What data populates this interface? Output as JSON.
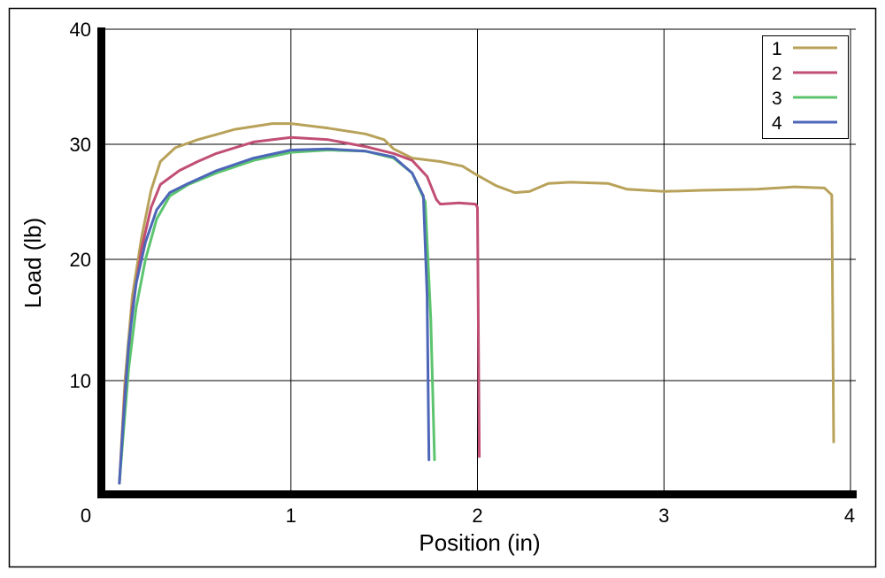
{
  "chart_data": {
    "type": "line",
    "xlabel": "Position (in)",
    "ylabel": "Load (lb)",
    "xlim": [
      0,
      4
    ],
    "ylim": [
      0,
      40
    ],
    "x_ticks": [
      "0",
      "1",
      "2",
      "3",
      "4"
    ],
    "y_ticks": [
      "10",
      "20",
      "30",
      "40"
    ],
    "grid": true,
    "legend_position": "top-right",
    "series": [
      {
        "name": "1",
        "color": "#b8a25a",
        "points": [
          [
            0.08,
            0.8
          ],
          [
            0.11,
            10
          ],
          [
            0.15,
            17
          ],
          [
            0.2,
            22
          ],
          [
            0.25,
            26
          ],
          [
            0.3,
            28.5
          ],
          [
            0.38,
            29.7
          ],
          [
            0.5,
            30.4
          ],
          [
            0.7,
            31.3
          ],
          [
            0.9,
            31.8
          ],
          [
            1.0,
            31.8
          ],
          [
            1.2,
            31.4
          ],
          [
            1.4,
            30.9
          ],
          [
            1.5,
            30.4
          ],
          [
            1.55,
            29.6
          ],
          [
            1.65,
            28.8
          ],
          [
            1.8,
            28.5
          ],
          [
            1.92,
            28.1
          ],
          [
            2.0,
            27.3
          ],
          [
            2.1,
            26.4
          ],
          [
            2.2,
            25.8
          ],
          [
            2.28,
            25.9
          ],
          [
            2.38,
            26.6
          ],
          [
            2.5,
            26.7
          ],
          [
            2.7,
            26.6
          ],
          [
            2.8,
            26.1
          ],
          [
            3.0,
            25.9
          ],
          [
            3.2,
            26.0
          ],
          [
            3.5,
            26.1
          ],
          [
            3.7,
            26.3
          ],
          [
            3.86,
            26.2
          ],
          [
            3.9,
            25.6
          ],
          [
            3.91,
            4.5
          ]
        ]
      },
      {
        "name": "2",
        "color": "#c14f73",
        "points": [
          [
            0.08,
            0.8
          ],
          [
            0.11,
            9
          ],
          [
            0.15,
            16
          ],
          [
            0.2,
            21
          ],
          [
            0.25,
            24.5
          ],
          [
            0.3,
            26.5
          ],
          [
            0.4,
            27.7
          ],
          [
            0.5,
            28.5
          ],
          [
            0.6,
            29.2
          ],
          [
            0.8,
            30.2
          ],
          [
            1.0,
            30.6
          ],
          [
            1.2,
            30.4
          ],
          [
            1.4,
            29.8
          ],
          [
            1.55,
            29.2
          ],
          [
            1.65,
            28.6
          ],
          [
            1.73,
            27.2
          ],
          [
            1.78,
            25.2
          ],
          [
            1.8,
            24.8
          ],
          [
            1.9,
            24.9
          ],
          [
            1.99,
            24.8
          ],
          [
            2.0,
            24.5
          ],
          [
            2.01,
            3.2
          ]
        ]
      },
      {
        "name": "3",
        "color": "#5cc46e",
        "points": [
          [
            0.08,
            0.8
          ],
          [
            0.1,
            5
          ],
          [
            0.13,
            11
          ],
          [
            0.17,
            16
          ],
          [
            0.22,
            20
          ],
          [
            0.28,
            23.5
          ],
          [
            0.35,
            25.5
          ],
          [
            0.45,
            26.5
          ],
          [
            0.6,
            27.5
          ],
          [
            0.8,
            28.6
          ],
          [
            1.0,
            29.3
          ],
          [
            1.2,
            29.5
          ],
          [
            1.4,
            29.4
          ],
          [
            1.55,
            28.8
          ],
          [
            1.65,
            27.5
          ],
          [
            1.72,
            25
          ],
          [
            1.75,
            15
          ],
          [
            1.77,
            2.9
          ]
        ]
      },
      {
        "name": "4",
        "color": "#4d66b8",
        "points": [
          [
            0.08,
            0.8
          ],
          [
            0.1,
            6
          ],
          [
            0.13,
            13
          ],
          [
            0.17,
            18
          ],
          [
            0.22,
            21.5
          ],
          [
            0.28,
            24.3
          ],
          [
            0.35,
            25.8
          ],
          [
            0.45,
            26.6
          ],
          [
            0.6,
            27.7
          ],
          [
            0.8,
            28.8
          ],
          [
            1.0,
            29.5
          ],
          [
            1.2,
            29.6
          ],
          [
            1.4,
            29.4
          ],
          [
            1.55,
            28.9
          ],
          [
            1.65,
            27.5
          ],
          [
            1.71,
            25.5
          ],
          [
            1.73,
            17
          ],
          [
            1.74,
            2.9
          ]
        ]
      }
    ]
  }
}
